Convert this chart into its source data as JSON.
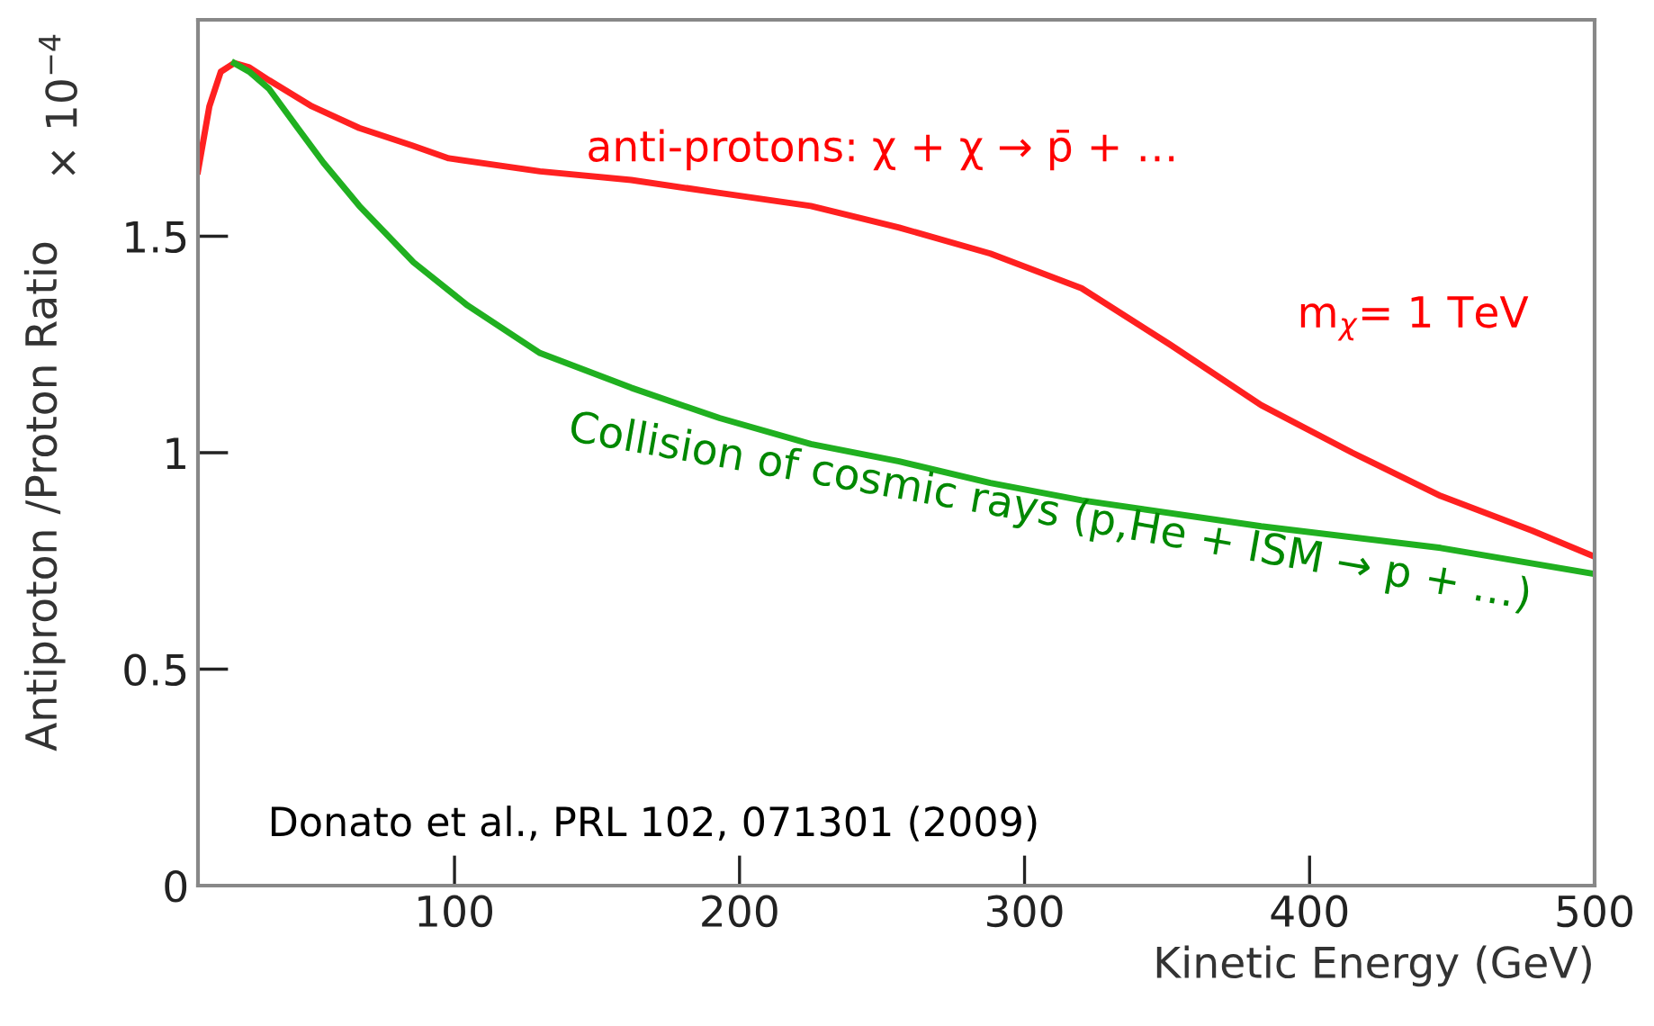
{
  "chart_data": {
    "type": "line",
    "xlabel": "Kinetic Energy (GeV)",
    "ylabel": "Antiproton /Proton Ratio",
    "xlim": [
      10,
      500
    ],
    "ylim": [
      0,
      2.0
    ],
    "xticks": [
      100,
      200,
      300,
      400,
      500
    ],
    "yticks": [
      0,
      0.5,
      1,
      1.5
    ],
    "grid": false,
    "legend": false,
    "series": [
      {
        "color": "#ff2020",
        "x": [
          10,
          14,
          18,
          22.7,
          28,
          35,
          50,
          66.6,
          85,
          98,
          130,
          162,
          193,
          225,
          256,
          288,
          320,
          351,
          383,
          415,
          446,
          478,
          500
        ],
        "values": [
          1.65,
          1.8,
          1.88,
          1.9,
          1.89,
          1.86,
          1.8,
          1.75,
          1.71,
          1.68,
          1.65,
          1.63,
          1.6,
          1.57,
          1.52,
          1.46,
          1.38,
          1.25,
          1.11,
          1.0,
          0.9,
          0.82,
          0.76
        ]
      },
      {
        "color": "#20b020",
        "x": [
          22.7,
          28,
          35,
          45,
          54,
          66.6,
          85.6,
          104.6,
          130,
          162,
          193,
          225,
          256,
          288,
          320,
          383,
          446,
          500
        ],
        "values": [
          1.9,
          1.88,
          1.84,
          1.75,
          1.67,
          1.57,
          1.44,
          1.34,
          1.23,
          1.15,
          1.08,
          1.02,
          0.98,
          0.93,
          0.89,
          0.83,
          0.78,
          0.72
        ]
      }
    ],
    "annotations": [
      "× 10$^{−4}$",
      "anti-protons: χ + χ → p̄ + …",
      "m$_{χ}$= 1 TeV",
      "Collision of cosmic rays (p,He + ISM → p + …)",
      "Donato et al., PRL 102, 071301 (2009)"
    ]
  }
}
